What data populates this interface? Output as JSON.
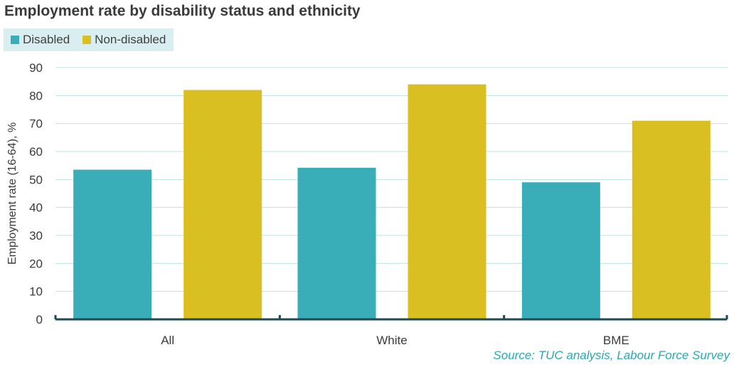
{
  "chart_data": {
    "type": "bar",
    "title": "Employment rate by disability status and ethnicity",
    "ylabel": "Employment rate (16-64), %",
    "xlabel": "",
    "categories": [
      "All",
      "White",
      "BME"
    ],
    "series": [
      {
        "name": "Disabled",
        "color": "#3aaeb8",
        "values": [
          53.5,
          54.2,
          49
        ]
      },
      {
        "name": "Non-disabled",
        "color": "#d9bf22",
        "values": [
          82,
          84,
          71
        ]
      }
    ],
    "ylim": [
      0,
      90
    ],
    "yticks": [
      0,
      10,
      20,
      30,
      40,
      50,
      60,
      70,
      80,
      90
    ],
    "grid": true,
    "legend": "top-left",
    "source": "Source: TUC analysis, Labour Force Survey"
  }
}
